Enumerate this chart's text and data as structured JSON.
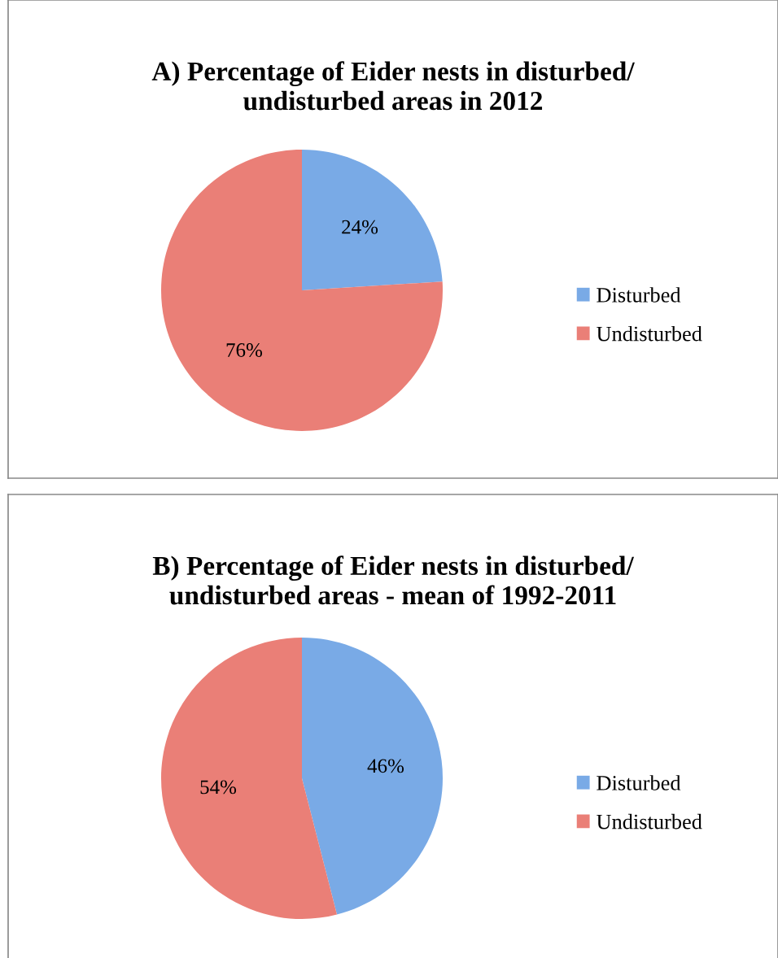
{
  "chart_data": [
    {
      "type": "pie",
      "title": "A) Percentage of Eider nests in disturbed/\nundisturbed areas in 2012",
      "categories": [
        "Disturbed",
        "Undisturbed"
      ],
      "values": [
        24,
        76
      ],
      "colors": [
        "#79aae6",
        "#ea7f77"
      ],
      "value_labels": [
        "24%",
        "76%"
      ],
      "legend": "right"
    },
    {
      "type": "pie",
      "title": "B) Percentage of Eider nests in disturbed/\nundisturbed areas - mean of 1992-2011",
      "categories": [
        "Disturbed",
        "Undisturbed"
      ],
      "values": [
        46,
        54
      ],
      "colors": [
        "#79aae6",
        "#ea7f77"
      ],
      "value_labels": [
        "46%",
        "54%"
      ],
      "legend": "right"
    }
  ]
}
